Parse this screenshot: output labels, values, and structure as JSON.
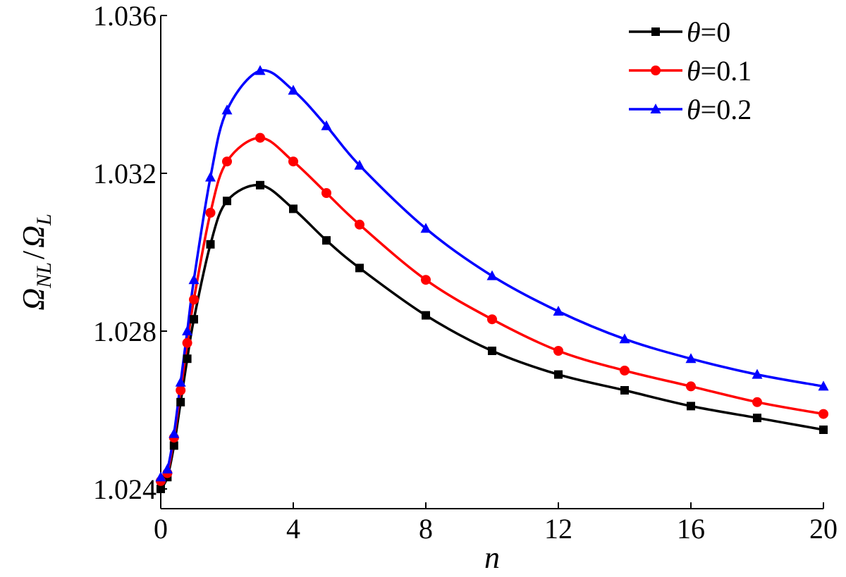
{
  "chart_data": {
    "type": "line",
    "title": "",
    "xlabel": "n",
    "ylabel": {
      "main1": "Ω",
      "sub1": "NL",
      "slash": "/",
      "main2": "Ω",
      "sub2": "L"
    },
    "xlim": [
      0,
      20
    ],
    "ylim": [
      1.0235,
      1.036
    ],
    "xticks": [
      0,
      4,
      8,
      12,
      16,
      20
    ],
    "xtick_labels": [
      "0",
      "4",
      "8",
      "12",
      "16",
      "20"
    ],
    "yticks": [
      1.024,
      1.028,
      1.032,
      1.036
    ],
    "ytick_labels": [
      "1.024",
      "1.028",
      "1.032",
      "1.036"
    ],
    "grid": false,
    "legend_position": "top-right",
    "series": [
      {
        "name": "θ=0",
        "legend_symbol": "θ",
        "legend_value": "=0",
        "color": "#000000",
        "marker": "square",
        "x": [
          0,
          0.2,
          0.4,
          0.6,
          0.8,
          1,
          1.5,
          2,
          3,
          4,
          5,
          6,
          8,
          10,
          12,
          14,
          16,
          18,
          20
        ],
        "y": [
          1.024,
          1.0243,
          1.0251,
          1.0262,
          1.0273,
          1.0283,
          1.0302,
          1.0313,
          1.0317,
          1.0311,
          1.0303,
          1.0296,
          1.0284,
          1.0275,
          1.0269,
          1.0265,
          1.0261,
          1.0258,
          1.0255
        ]
      },
      {
        "name": "θ=0.1",
        "legend_symbol": "θ",
        "legend_value": "=0.1",
        "color": "#ff0000",
        "marker": "circle",
        "x": [
          0,
          0.2,
          0.4,
          0.6,
          0.8,
          1,
          1.5,
          2,
          3,
          4,
          5,
          6,
          8,
          10,
          12,
          14,
          16,
          18,
          20
        ],
        "y": [
          1.0242,
          1.0244,
          1.0253,
          1.0265,
          1.0277,
          1.0288,
          1.031,
          1.0323,
          1.0329,
          1.0323,
          1.0315,
          1.0307,
          1.0293,
          1.0283,
          1.0275,
          1.027,
          1.0266,
          1.0262,
          1.0259
        ]
      },
      {
        "name": "θ=0.2",
        "legend_symbol": "θ",
        "legend_value": "=0.2",
        "color": "#0000ff",
        "marker": "triangle",
        "x": [
          0,
          0.2,
          0.4,
          0.6,
          0.8,
          1,
          1.5,
          2,
          3,
          4,
          5,
          6,
          8,
          10,
          12,
          14,
          16,
          18,
          20
        ],
        "y": [
          1.0243,
          1.0245,
          1.0254,
          1.0267,
          1.028,
          1.0293,
          1.0319,
          1.0336,
          1.0346,
          1.0341,
          1.0332,
          1.0322,
          1.0306,
          1.0294,
          1.0285,
          1.0278,
          1.0273,
          1.0269,
          1.0266
        ]
      }
    ]
  }
}
